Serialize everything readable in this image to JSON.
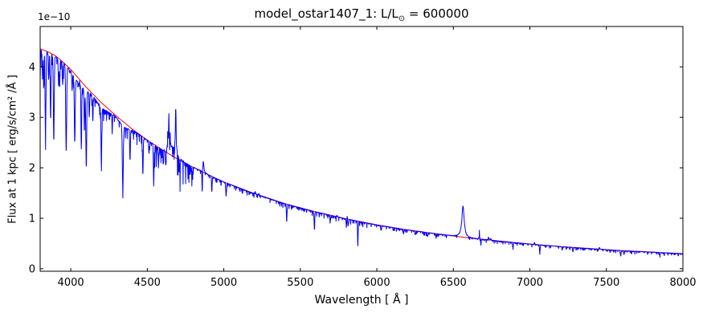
{
  "figure": {
    "title_prefix": "model_ostar1407_1: L/L",
    "title_sub": "⊙",
    "title_suffix": " = 600000",
    "background": "#ffffff"
  },
  "chart_data": {
    "type": "line",
    "title": "model_ostar1407_1: L/L⊙ = 600000",
    "xlabel": "Wavelength [ Å ]",
    "ylabel": "Flux at 1 kpc [ erg/s/cm² /Å ]",
    "y_offset_label": "1e−10",
    "y_unit_scale": 1e-10,
    "xlim": [
      3800,
      8000
    ],
    "ylim": [
      -0.05,
      4.8
    ],
    "xticks": [
      4000,
      4500,
      5000,
      5500,
      6000,
      6500,
      7000,
      7500,
      8000
    ],
    "yticks": [
      0,
      1,
      2,
      3,
      4
    ],
    "grid": false,
    "legend": false,
    "axis_color": "#000000",
    "series": [
      {
        "role": "spectrum",
        "color": "#0000ff",
        "line_width": 1
      },
      {
        "role": "continuum",
        "color": "#ff0000",
        "line_width": 1
      }
    ],
    "continuum_points": [
      [
        3800,
        4.36
      ],
      [
        3850,
        4.3
      ],
      [
        3900,
        4.22
      ],
      [
        3950,
        4.09
      ],
      [
        4000,
        3.95
      ],
      [
        4100,
        3.6
      ],
      [
        4200,
        3.29
      ],
      [
        4300,
        3.02
      ],
      [
        4400,
        2.77
      ],
      [
        4500,
        2.55
      ],
      [
        4600,
        2.35
      ],
      [
        4700,
        2.17
      ],
      [
        4800,
        2.01
      ],
      [
        4900,
        1.86
      ],
      [
        5000,
        1.72
      ],
      [
        5200,
        1.49
      ],
      [
        5400,
        1.29
      ],
      [
        5600,
        1.13
      ],
      [
        5800,
        0.99
      ],
      [
        6000,
        0.87
      ],
      [
        6200,
        0.77
      ],
      [
        6400,
        0.69
      ],
      [
        6600,
        0.61
      ],
      [
        6800,
        0.55
      ],
      [
        7000,
        0.49
      ],
      [
        7200,
        0.44
      ],
      [
        7400,
        0.4
      ],
      [
        7600,
        0.36
      ],
      [
        7800,
        0.33
      ],
      [
        8000,
        0.3
      ]
    ],
    "absorption_lines": [
      [
        3798,
        0.85,
        2.5
      ],
      [
        3815,
        0.5,
        2
      ],
      [
        3823,
        0.7,
        2
      ],
      [
        3835,
        1.65,
        2.8
      ],
      [
        3856,
        0.5,
        2
      ],
      [
        3868,
        1.3,
        2.5
      ],
      [
        3889,
        1.7,
        2.8
      ],
      [
        3920,
        0.5,
        2
      ],
      [
        3927,
        0.55,
        2
      ],
      [
        3947,
        0.45,
        2
      ],
      [
        3970,
        1.7,
        3
      ],
      [
        4009,
        0.35,
        2
      ],
      [
        4026,
        1.3,
        2.8
      ],
      [
        4069,
        1.25,
        2.2
      ],
      [
        4089,
        0.85,
        2.2
      ],
      [
        4101,
        1.45,
        3
      ],
      [
        4121,
        0.5,
        2
      ],
      [
        4144,
        0.5,
        2
      ],
      [
        4200,
        1.15,
        2.5
      ],
      [
        4271,
        0.3,
        2
      ],
      [
        4340,
        1.3,
        3
      ],
      [
        4387,
        0.6,
        2.2
      ],
      [
        4471,
        0.75,
        2.2
      ],
      [
        4511,
        0.25,
        2
      ],
      [
        4542,
        0.8,
        2.2
      ],
      [
        4574,
        0.3,
        2
      ],
      [
        4604,
        0.3,
        2
      ],
      [
        4620,
        0.3,
        2
      ],
      [
        4713,
        0.3,
        2
      ],
      [
        4793,
        0.18,
        2
      ],
      [
        4859,
        0.45,
        1.8
      ],
      [
        4922,
        0.28,
        2
      ],
      [
        5015,
        0.27,
        2
      ],
      [
        5411,
        0.33,
        2
      ],
      [
        5592,
        0.35,
        2
      ],
      [
        5696,
        0.12,
        2
      ],
      [
        5801,
        0.16,
        2
      ],
      [
        5812,
        0.14,
        2
      ],
      [
        5876,
        0.5,
        1.8
      ],
      [
        6028,
        0.05,
        2
      ],
      [
        6107,
        0.06,
        2
      ],
      [
        6175,
        0.05,
        2
      ],
      [
        6250,
        0.07,
        2
      ],
      [
        6332,
        0.08,
        2
      ],
      [
        6385,
        0.06,
        2
      ],
      [
        6680,
        0.13,
        1.5
      ],
      [
        6890,
        0.1,
        2
      ],
      [
        7065,
        0.17,
        2
      ],
      [
        7211,
        0.07,
        2
      ],
      [
        7281,
        0.09,
        2
      ],
      [
        7594,
        0.1,
        2
      ],
      [
        7615,
        0.08,
        2
      ],
      [
        7850,
        0.05,
        2
      ],
      [
        4060,
        0.1,
        35
      ],
      [
        4205,
        0.08,
        40
      ],
      [
        4350,
        0.08,
        30
      ]
    ],
    "emission_lines": [
      [
        4058,
        0.1,
        1.5
      ],
      [
        4634,
        0.55,
        1.6
      ],
      [
        4641,
        0.7,
        2
      ],
      [
        4650,
        0.3,
        1.5
      ],
      [
        4686,
        1.0,
        2.6
      ],
      [
        4665,
        0.17,
        30
      ],
      [
        4866,
        0.23,
        4
      ],
      [
        5205,
        0.06,
        2.5
      ],
      [
        5228,
        0.05,
        2.5
      ],
      [
        5740,
        0.04,
        2
      ],
      [
        5806,
        0.07,
        1.5
      ],
      [
        6563,
        0.62,
        9
      ],
      [
        6670,
        0.18,
        1.3
      ],
      [
        6730,
        0.06,
        2.5
      ],
      [
        6744,
        0.05,
        2
      ],
      [
        7030,
        0.05,
        2
      ],
      [
        7455,
        0.04,
        2
      ]
    ],
    "noise_bands": [
      [
        3800,
        4000,
        0.1
      ],
      [
        4000,
        4520,
        0.07
      ],
      [
        4520,
        4800,
        0.13
      ],
      [
        4800,
        5950,
        0.028
      ],
      [
        5950,
        6450,
        0.02
      ],
      [
        6450,
        8000,
        0.018
      ]
    ]
  }
}
